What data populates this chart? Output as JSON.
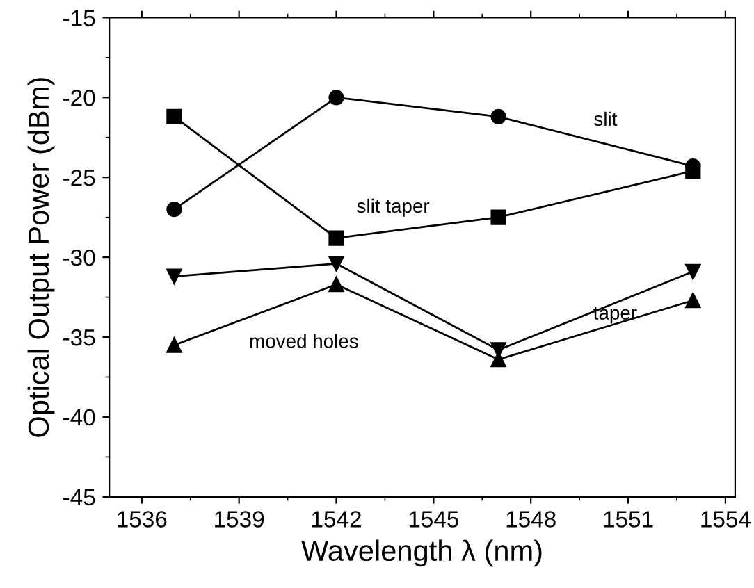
{
  "chart_data": {
    "type": "line",
    "xlabel": "Wavelength λ (nm)",
    "ylabel": "Optical Output Power (dBm)",
    "x": [
      1537,
      1542,
      1547,
      1553
    ],
    "series": [
      {
        "name": "slit",
        "color": "#000000",
        "marker": "circle",
        "values": [
          -27.0,
          -20.0,
          -21.2,
          -24.3
        ]
      },
      {
        "name": "slit taper",
        "color": "#000000",
        "marker": "square",
        "values": [
          -21.2,
          -28.8,
          -27.5,
          -24.6
        ]
      },
      {
        "name": "taper",
        "color": "#000000",
        "marker": "triangle_down",
        "values": [
          -31.2,
          -30.4,
          -35.8,
          -30.9
        ]
      },
      {
        "name": "moved holes",
        "color": "#000000",
        "marker": "triangle",
        "values": [
          -35.5,
          -31.7,
          -36.4,
          -32.7
        ]
      }
    ],
    "xlim": [
      1535,
      1554.3
    ],
    "xticks": [
      1536,
      1539,
      1542,
      1545,
      1548,
      1551,
      1554
    ],
    "ylim": [
      -45,
      -15
    ],
    "yticks": [
      -45,
      -40,
      -35,
      -30,
      -25,
      -20,
      -15
    ],
    "grid": false,
    "legend": false,
    "line_style": "solid"
  }
}
